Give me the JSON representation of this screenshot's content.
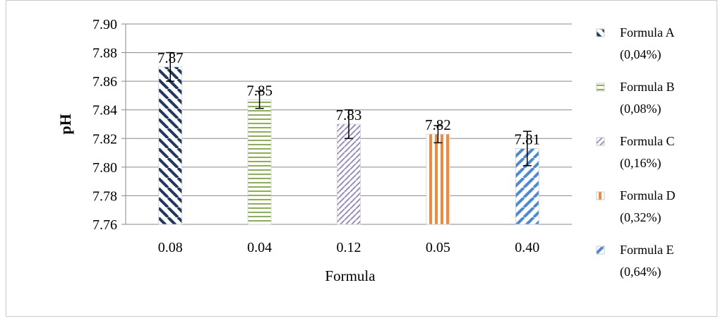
{
  "chart_data": {
    "type": "bar",
    "title": "",
    "xlabel": "Formula",
    "ylabel": "pH",
    "ylim": [
      7.76,
      7.9
    ],
    "yticks": [
      "7.90",
      "7.88",
      "7.86",
      "7.84",
      "7.82",
      "7.80",
      "7.78",
      "7.76"
    ],
    "grid": true,
    "legend_position": "right",
    "categories": [
      "0.08",
      "0.04",
      "0.12",
      "0.05",
      "0.40"
    ],
    "values": [
      7.87,
      7.847,
      7.83,
      7.823,
      7.813
    ],
    "error": [
      0.01,
      0.006,
      0.01,
      0.006,
      0.012
    ],
    "data_labels": [
      "7.87",
      "7.85",
      "7.83",
      "7.82",
      "7.81"
    ],
    "series": [
      {
        "line1": "Formula A",
        "line2": "(0,04%)",
        "color": "#1f3864",
        "pattern": "diag-down"
      },
      {
        "line1": "Formula B",
        "line2": "(0,08%)",
        "color": "#8db050",
        "pattern": "horizontal"
      },
      {
        "line1": "Formula C",
        "line2": "(0,16%)",
        "color": "#9a8cc0",
        "pattern": "diag-up-thin"
      },
      {
        "line1": "Formula D",
        "line2": "(0,32%)",
        "color": "#f08a3c",
        "pattern": "vertical"
      },
      {
        "line1": "Formula E",
        "line2": "(0,64%)",
        "color": "#4a8ad6",
        "pattern": "diag-up"
      }
    ]
  }
}
